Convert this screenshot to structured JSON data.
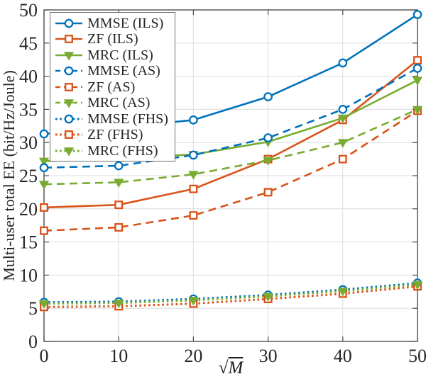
{
  "figure": {
    "ylabel": "Multi-user total EE (bit/Hz/Joule)",
    "xlabel_radical": "√",
    "xlabel_radicand": "M"
  },
  "chart_data": {
    "type": "line",
    "title": "",
    "xlabel": "√M",
    "ylabel": "Multi-user total EE (bit/Hz/Joule)",
    "x": [
      0,
      10,
      20,
      30,
      40,
      50
    ],
    "xlim": [
      0,
      50
    ],
    "ylim": [
      0,
      50
    ],
    "xticks": [
      0,
      10,
      20,
      30,
      40,
      50
    ],
    "yticks": [
      0,
      5,
      10,
      15,
      20,
      25,
      30,
      35,
      40,
      45,
      50
    ],
    "grid": true,
    "legend_position": "top-left",
    "series": [
      {
        "name": "MMSE (ILS)",
        "color": "#0072BD",
        "line": "solid",
        "marker": "circle",
        "values": [
          31.3,
          32.2,
          33.4,
          36.9,
          42.0,
          49.3
        ]
      },
      {
        "name": "ZF (ILS)",
        "color": "#D95319",
        "line": "solid",
        "marker": "square",
        "values": [
          20.2,
          20.6,
          23.0,
          27.5,
          33.4,
          42.4
        ]
      },
      {
        "name": "MRC (ILS)",
        "color": "#77AC30",
        "line": "solid",
        "marker": "triangle",
        "values": [
          27.2,
          27.6,
          28.2,
          30.1,
          33.7,
          39.4
        ]
      },
      {
        "name": "MMSE (AS)",
        "color": "#0072BD",
        "line": "dashed",
        "marker": "circle",
        "values": [
          26.2,
          26.5,
          28.1,
          30.7,
          35.0,
          41.2
        ]
      },
      {
        "name": "ZF (AS)",
        "color": "#D95319",
        "line": "dashed",
        "marker": "square",
        "values": [
          16.7,
          17.2,
          19.0,
          22.5,
          27.5,
          34.8
        ]
      },
      {
        "name": "MRC (AS)",
        "color": "#77AC30",
        "line": "dashed",
        "marker": "triangle",
        "values": [
          23.7,
          24.0,
          25.2,
          27.3,
          30.0,
          35.0
        ]
      },
      {
        "name": "MMSE (FHS)",
        "color": "#0072BD",
        "line": "dotted",
        "marker": "circle",
        "values": [
          5.9,
          6.0,
          6.4,
          7.0,
          7.8,
          8.8
        ]
      },
      {
        "name": "ZF (FHS)",
        "color": "#D95319",
        "line": "dotted",
        "marker": "square",
        "values": [
          5.2,
          5.3,
          5.7,
          6.4,
          7.2,
          8.3
        ]
      },
      {
        "name": "MRC (FHS)",
        "color": "#77AC30",
        "line": "dotted",
        "marker": "triangle",
        "values": [
          5.7,
          5.8,
          6.2,
          6.8,
          7.6,
          8.6
        ]
      }
    ]
  }
}
